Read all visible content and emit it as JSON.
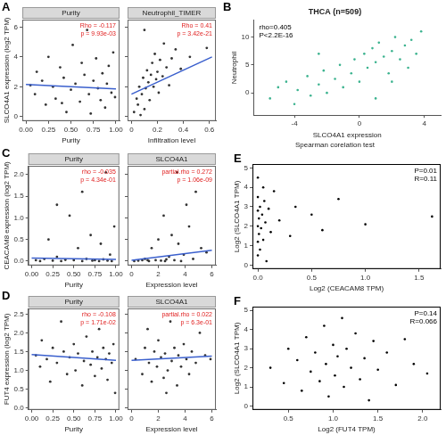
{
  "chart_data": [
    {
      "type": "scatter",
      "panel": "A",
      "title": "Purity",
      "x_label": "Purity",
      "y_label": "SLCO4A1 expression (log2 TPM)",
      "annotations": [
        "Rho = -0.117",
        "p = 9.93e-03"
      ],
      "xlim": [
        -0.04,
        1.04
      ],
      "xticks": [
        {
          "value": 0,
          "label": "0.00"
        },
        {
          "value": 0.25,
          "label": "0.25"
        },
        {
          "value": 0.5,
          "label": "0.50"
        },
        {
          "value": 0.75,
          "label": "0.75"
        },
        {
          "value": 1,
          "label": "1.00"
        }
      ],
      "ylim": [
        -0.3,
        6.5
      ],
      "yticks": [
        0,
        2,
        4,
        6
      ],
      "grid": false,
      "series": [
        {
          "type": "scatter",
          "marker": "circle",
          "color": "#333333",
          "x": [
            0.05,
            0.1,
            0.12,
            0.18,
            0.22,
            0.25,
            0.3,
            0.33,
            0.38,
            0.42,
            0.45,
            0.5,
            0.52,
            0.55,
            0.6,
            0.62,
            0.65,
            0.7,
            0.72,
            0.75,
            0.78,
            0.8,
            0.83,
            0.85,
            0.88,
            0.9,
            0.92,
            0.95,
            0.97,
            0.99,
            0.68,
            0.4
          ],
          "values": [
            2.1,
            1.5,
            3.0,
            2.4,
            0.8,
            4.0,
            2.0,
            1.2,
            3.3,
            2.6,
            0.3,
            1.8,
            4.8,
            2.2,
            1.0,
            3.6,
            2.8,
            1.5,
            0.2,
            2.4,
            3.9,
            1.9,
            1.1,
            2.9,
            0.6,
            2.2,
            3.4,
            1.6,
            4.3,
            1.3,
            5.8,
            0.9
          ]
        },
        {
          "type": "line",
          "line_style": "solid",
          "color": "#3a5fcd",
          "x": [
            0,
            1
          ],
          "values": [
            2.15,
            1.85
          ]
        }
      ]
    },
    {
      "type": "scatter",
      "title": "Neutrophil_TIMER",
      "x_label": "Infiltration level",
      "annotations": [
        "Rho = 0.41",
        "p = 3.42e-21"
      ],
      "xlim": [
        -0.03,
        0.65
      ],
      "xticks": [
        0,
        0.2,
        0.4,
        0.6
      ],
      "ylim": [
        -0.3,
        6.5
      ],
      "yticks": [
        0,
        2,
        4,
        6
      ],
      "grid": false,
      "tick_labels": "x",
      "series": [
        {
          "type": "scatter",
          "marker": "circle",
          "color": "#333333",
          "x": [
            0.02,
            0.04,
            0.05,
            0.06,
            0.08,
            0.09,
            0.1,
            0.11,
            0.12,
            0.13,
            0.14,
            0.15,
            0.16,
            0.17,
            0.18,
            0.19,
            0.2,
            0.21,
            0.22,
            0.24,
            0.25,
            0.27,
            0.29,
            0.31,
            0.34,
            0.38,
            0.45,
            0.58,
            0.1,
            0.07
          ],
          "values": [
            0.3,
            1.2,
            0.8,
            2.0,
            1.5,
            2.6,
            0.5,
            1.9,
            3.1,
            2.3,
            1.1,
            2.8,
            3.6,
            2.0,
            4.2,
            2.5,
            3.0,
            1.6,
            3.8,
            2.7,
            4.9,
            3.3,
            2.1,
            3.9,
            4.5,
            3.2,
            4.0,
            4.6,
            5.8,
            0.1
          ]
        },
        {
          "type": "line",
          "line_style": "solid",
          "color": "#3a5fcd",
          "x": [
            0,
            0.62
          ],
          "values": [
            1.5,
            4.0
          ]
        }
      ]
    },
    {
      "type": "scatter",
      "panel": "B",
      "title": "THCA (n=509)",
      "subtitle": "Spearman corelation test",
      "x_label": "SLCO4A1 expression",
      "y_label": "Neutrophil",
      "annotations": [
        "rho=0.405",
        "P<2.2E-16"
      ],
      "xlim": [
        -6.5,
        5
      ],
      "xticks": [
        -4,
        0,
        4
      ],
      "ylim": [
        -4,
        13
      ],
      "yticks": [
        0,
        5,
        10
      ],
      "grid": false,
      "series": [
        {
          "type": "scatter",
          "marker": "circle",
          "color": "#3cb38f",
          "x": [
            -5.5,
            -5,
            -4.5,
            -4,
            -3.8,
            -3.2,
            -3,
            -2.5,
            -2.2,
            -2,
            -1.5,
            -1.2,
            -1,
            -0.5,
            -0.3,
            0,
            0.3,
            0.5,
            0.8,
            1,
            1.2,
            1.5,
            1.8,
            2,
            2.2,
            2.5,
            2.8,
            3,
            3.2,
            3.5,
            3.8,
            2,
            1,
            -2.5
          ],
          "values": [
            -1,
            1,
            2,
            -2,
            0.5,
            3,
            -0.5,
            1.5,
            4,
            0,
            2.5,
            5,
            1,
            3.5,
            6,
            2,
            7,
            4.5,
            8,
            5.5,
            9,
            6.5,
            3.5,
            7.5,
            10,
            6,
            8.5,
            4.5,
            9.5,
            7,
            11,
            2,
            -1,
            7
          ]
        }
      ]
    },
    {
      "type": "scatter",
      "panel": "C",
      "title": "Purity",
      "x_label": "Purity",
      "y_label": "CEACAM8 expression (log2 TPM)",
      "annotations": [
        "rho = -0.035",
        "p = 4.34e-01"
      ],
      "xlim": [
        -0.04,
        1.04
      ],
      "xticks": [
        {
          "value": 0,
          "label": "0.00"
        },
        {
          "value": 0.25,
          "label": "0.25"
        },
        {
          "value": 0.5,
          "label": "0.50"
        },
        {
          "value": 0.75,
          "label": "0.75"
        },
        {
          "value": 1,
          "label": "1.00"
        }
      ],
      "ylim": [
        -0.1,
        2.2
      ],
      "yticks": [
        {
          "value": 0,
          "label": "0.0"
        },
        {
          "value": 0.5,
          "label": "0.5"
        },
        {
          "value": 1,
          "label": "1.0"
        },
        {
          "value": 1.5,
          "label": "1.5"
        },
        {
          "value": 2,
          "label": "2.0"
        }
      ],
      "grid": false,
      "series": [
        {
          "type": "scatter",
          "marker": "circle",
          "color": "#333333",
          "x": [
            0.05,
            0.1,
            0.15,
            0.2,
            0.25,
            0.3,
            0.35,
            0.4,
            0.45,
            0.5,
            0.55,
            0.6,
            0.65,
            0.7,
            0.72,
            0.75,
            0.8,
            0.82,
            0.85,
            0.88,
            0.9,
            0.93,
            0.95,
            0.98,
            0.6,
            0.3
          ],
          "values": [
            0.02,
            0,
            0.05,
            0.5,
            0.01,
            0.1,
            0,
            0.03,
            1.05,
            0.02,
            0.3,
            0,
            0.05,
            0.6,
            0.01,
            0.02,
            0,
            0.4,
            0.04,
            2.05,
            0.01,
            0.15,
            0,
            0.8,
            1.6,
            1.3
          ]
        },
        {
          "type": "line",
          "line_style": "solid",
          "color": "#3a5fcd",
          "x": [
            0,
            1
          ],
          "values": [
            0.07,
            0.04
          ]
        }
      ]
    },
    {
      "type": "scatter",
      "title": "SLCO4A1",
      "x_label": "Expression level",
      "annotations": [
        "partial.rho = 0.272",
        "p = 1.06e-09"
      ],
      "xlim": [
        -0.3,
        6.3
      ],
      "xticks": [
        0,
        2,
        4,
        6
      ],
      "ylim": [
        -0.1,
        2.2
      ],
      "yticks": [
        {
          "value": 0,
          "label": "0.0"
        },
        {
          "value": 0.5,
          "label": "0.5"
        },
        {
          "value": 1,
          "label": "1.0"
        },
        {
          "value": 1.5,
          "label": "1.5"
        },
        {
          "value": 2,
          "label": "2.0"
        }
      ],
      "grid": false,
      "tick_labels": "x",
      "series": [
        {
          "type": "scatter",
          "marker": "circle",
          "color": "#333333",
          "x": [
            0.2,
            0.5,
            0.8,
            1.0,
            1.3,
            1.5,
            1.8,
            2.0,
            2.2,
            2.4,
            2.6,
            2.8,
            3.0,
            3.2,
            3.4,
            3.5,
            3.7,
            3.9,
            4.1,
            4.3,
            4.6,
            4.8,
            5.2,
            5.6,
            1.2,
            2.5
          ],
          "values": [
            0,
            0.01,
            0.02,
            0.05,
            0,
            0.3,
            0.02,
            0.5,
            0.01,
            1.05,
            0.04,
            0.1,
            0.6,
            0.02,
            2.05,
            0.4,
            0,
            0.15,
            1.3,
            0.8,
            0.05,
            1.6,
            0.3,
            0.2,
            0.02,
            0
          ]
        },
        {
          "type": "line",
          "line_style": "solid",
          "color": "#3a5fcd",
          "x": [
            0,
            6
          ],
          "values": [
            0.02,
            0.25
          ]
        }
      ]
    },
    {
      "type": "scatter",
      "panel": "D",
      "title": "Purity",
      "x_label": "Purity",
      "y_label": "FUT4 expression (log2 TPM)",
      "annotations": [
        "rho = -0.108",
        "p = 1.71e-02"
      ],
      "xlim": [
        -0.04,
        1.04
      ],
      "xticks": [
        {
          "value": 0,
          "label": "0.00"
        },
        {
          "value": 0.25,
          "label": "0.25"
        },
        {
          "value": 0.5,
          "label": "0.50"
        },
        {
          "value": 0.75,
          "label": "0.75"
        },
        {
          "value": 1,
          "label": "1.00"
        }
      ],
      "ylim": [
        -0.05,
        2.65
      ],
      "yticks": [
        {
          "value": 0,
          "label": "0.0"
        },
        {
          "value": 0.5,
          "label": "0.5"
        },
        {
          "value": 1,
          "label": "1.0"
        },
        {
          "value": 1.5,
          "label": "1.5"
        },
        {
          "value": 2,
          "label": "2.0"
        },
        {
          "value": 2.5,
          "label": "2.5"
        }
      ],
      "grid": false,
      "series": [
        {
          "type": "scatter",
          "marker": "circle",
          "color": "#333333",
          "x": [
            0.05,
            0.1,
            0.12,
            0.18,
            0.22,
            0.25,
            0.3,
            0.35,
            0.38,
            0.42,
            0.45,
            0.5,
            0.52,
            0.55,
            0.6,
            0.62,
            0.65,
            0.7,
            0.72,
            0.75,
            0.78,
            0.8,
            0.83,
            0.85,
            0.88,
            0.9,
            0.92,
            0.95,
            0.97,
            0.99
          ],
          "values": [
            1.4,
            1.1,
            1.8,
            1.3,
            0.7,
            1.6,
            1.2,
            2.3,
            1.5,
            0.9,
            1.35,
            1.7,
            1.0,
            1.45,
            0.6,
            1.25,
            1.9,
            1.15,
            1.5,
            0.85,
            1.35,
            2.1,
            1.05,
            1.6,
            1.3,
            0.75,
            1.45,
            1.2,
            1.7,
            0.4
          ]
        },
        {
          "type": "line",
          "line_style": "solid",
          "color": "#3a5fcd",
          "x": [
            0,
            1
          ],
          "values": [
            1.42,
            1.27
          ]
        }
      ]
    },
    {
      "type": "scatter",
      "title": "SLCO4A1",
      "x_label": "Expression level",
      "annotations": [
        "partial.rho = 0.022",
        "p = 6.3e-01"
      ],
      "xlim": [
        -0.3,
        6.3
      ],
      "xticks": [
        0,
        2,
        4,
        6
      ],
      "ylim": [
        -0.05,
        2.65
      ],
      "yticks": [
        {
          "value": 0,
          "label": "0.0"
        },
        {
          "value": 0.5,
          "label": "0.5"
        },
        {
          "value": 1,
          "label": "1.0"
        },
        {
          "value": 1.5,
          "label": "1.5"
        },
        {
          "value": 2,
          "label": "2.0"
        },
        {
          "value": 2.5,
          "label": "2.5"
        }
      ],
      "grid": false,
      "tick_labels": "x",
      "series": [
        {
          "type": "scatter",
          "marker": "circle",
          "color": "#333333",
          "x": [
            0.3,
            0.8,
            1.0,
            1.3,
            1.5,
            1.7,
            1.9,
            2.0,
            2.2,
            2.4,
            2.5,
            2.7,
            2.9,
            3.0,
            3.2,
            3.4,
            3.5,
            3.7,
            3.9,
            4.1,
            4.3,
            4.5,
            4.8,
            5.1,
            5.5,
            5.9,
            2.6,
            1.2
          ],
          "values": [
            1.3,
            0.9,
            1.6,
            1.2,
            0.7,
            1.5,
            1.1,
            1.8,
            1.35,
            0.8,
            1.45,
            1.0,
            2.3,
            1.25,
            1.6,
            0.6,
            1.4,
            1.1,
            1.7,
            1.3,
            0.9,
            1.5,
            1.2,
            2.0,
            1.4,
            1.3,
            0.4,
            2.1
          ]
        },
        {
          "type": "line",
          "line_style": "solid",
          "color": "#3a5fcd",
          "x": [
            0,
            6
          ],
          "values": [
            1.27,
            1.38
          ]
        }
      ]
    },
    {
      "type": "scatter",
      "panel": "E",
      "x_label": "Log2 (CEACAM8 TPM)",
      "y_label": "Log2 (SLCO4A1 TPM)",
      "annotations": [
        "P=0.01",
        "R=0.11"
      ],
      "xlim": [
        -0.05,
        1.7
      ],
      "xticks": [
        {
          "value": 0,
          "label": "0.0"
        },
        {
          "value": 0.5,
          "label": "0.5"
        },
        {
          "value": 1,
          "label": "1.0"
        },
        {
          "value": 1.5,
          "label": "1.5"
        }
      ],
      "ylim": [
        -0.2,
        5.2
      ],
      "yticks": [
        0,
        1,
        2,
        3,
        4,
        5
      ],
      "grid": false,
      "series": [
        {
          "type": "scatter",
          "marker": "circle",
          "color": "#000000",
          "x": [
            0,
            0,
            0,
            0,
            0,
            0,
            0.01,
            0.01,
            0.02,
            0.02,
            0.03,
            0.04,
            0.05,
            0.05,
            0.06,
            0.07,
            0.08,
            0.1,
            0.12,
            0.15,
            0.2,
            0.3,
            0.35,
            0.5,
            0.6,
            0.75,
            1.0,
            1.62
          ],
          "values": [
            0.5,
            1.2,
            2.0,
            2.8,
            3.5,
            4.5,
            1.6,
            2.4,
            3.0,
            0.8,
            1.9,
            2.6,
            4.0,
            1.3,
            3.3,
            2.2,
            0.2,
            2.9,
            1.7,
            3.8,
            2.3,
            1.5,
            3.0,
            2.6,
            1.8,
            3.4,
            2.1,
            2.5
          ]
        }
      ]
    },
    {
      "type": "scatter",
      "panel": "F",
      "x_label": "Log2 (FUT4 TPM)",
      "y_label": "Log2 (SLCO4A1 TPM)",
      "annotations": [
        "P=0.14",
        "R=0.066"
      ],
      "xlim": [
        0.1,
        2.2
      ],
      "xticks": [
        {
          "value": 0.5,
          "label": "0.5"
        },
        {
          "value": 1,
          "label": "1.0"
        },
        {
          "value": 1.5,
          "label": "1.5"
        },
        {
          "value": 2,
          "label": "2.0"
        }
      ],
      "ylim": [
        -0.2,
        5.2
      ],
      "yticks": [
        0,
        1,
        2,
        3,
        4,
        5
      ],
      "grid": false,
      "series": [
        {
          "type": "scatter",
          "marker": "circle",
          "color": "#000000",
          "x": [
            0.3,
            0.45,
            0.5,
            0.6,
            0.65,
            0.7,
            0.75,
            0.8,
            0.85,
            0.9,
            0.92,
            0.95,
            1.0,
            1.02,
            1.05,
            1.1,
            1.12,
            1.15,
            1.2,
            1.25,
            1.3,
            1.35,
            1.4,
            1.45,
            1.5,
            1.6,
            1.7,
            1.8,
            1.9,
            2.05
          ],
          "values": [
            2.0,
            1.2,
            3.0,
            2.4,
            0.8,
            3.6,
            1.8,
            2.8,
            1.3,
            4.2,
            2.2,
            0.5,
            3.2,
            1.6,
            2.6,
            4.6,
            1.0,
            3.0,
            2.0,
            3.8,
            1.4,
            2.5,
            0.3,
            3.4,
            1.9,
            2.8,
            1.1,
            3.5,
            2.2,
            1.7
          ]
        }
      ]
    }
  ]
}
